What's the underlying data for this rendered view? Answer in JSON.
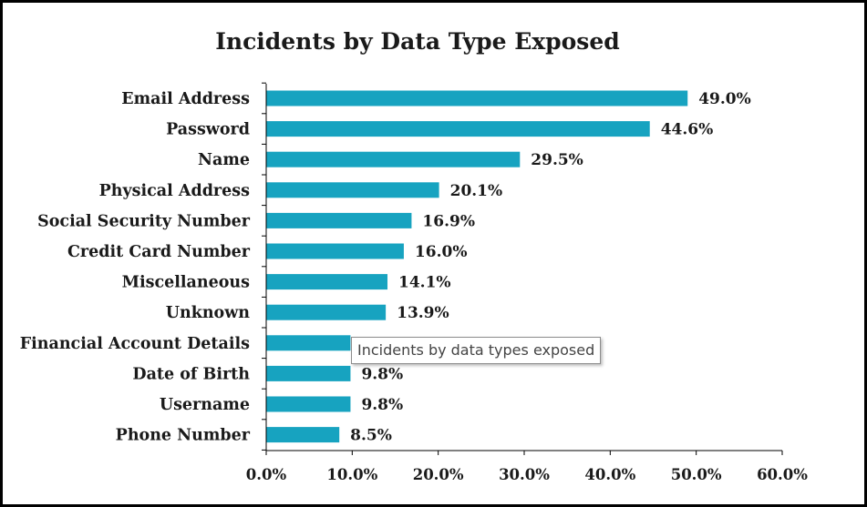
{
  "tooltip": {
    "text": "Incidents by data types exposed"
  },
  "colors": {
    "bar": "#17a3c0",
    "axis": "#000000",
    "text": "#1a1a1a"
  },
  "chart_data": {
    "type": "bar",
    "orientation": "horizontal",
    "title": "Incidents by Data Type Exposed",
    "xlabel": "",
    "ylabel": "",
    "categories": [
      "Email Address",
      "Password",
      "Name",
      "Physical Address",
      "Social Security Number",
      "Credit Card Number",
      "Miscellaneous",
      "Unknown",
      "Financial Account Details",
      "Date of Birth",
      "Username",
      "Phone Number"
    ],
    "values": [
      49.0,
      44.6,
      29.5,
      20.1,
      16.9,
      16.0,
      14.1,
      13.9,
      9.8,
      9.8,
      9.8,
      8.5
    ],
    "value_labels": [
      "49.0%",
      "44.6%",
      "29.5%",
      "20.1%",
      "16.9%",
      "16.0%",
      "14.1%",
      "13.9%",
      "",
      "9.8%",
      "9.8%",
      "8.5%"
    ],
    "xlim": [
      0,
      60
    ],
    "xticks": [
      0,
      10,
      20,
      30,
      40,
      50,
      60
    ],
    "xtick_labels": [
      "0.0%",
      "10.0%",
      "20.0%",
      "30.0%",
      "40.0%",
      "50.0%",
      "60.0%"
    ],
    "grid": false,
    "legend": "none"
  }
}
